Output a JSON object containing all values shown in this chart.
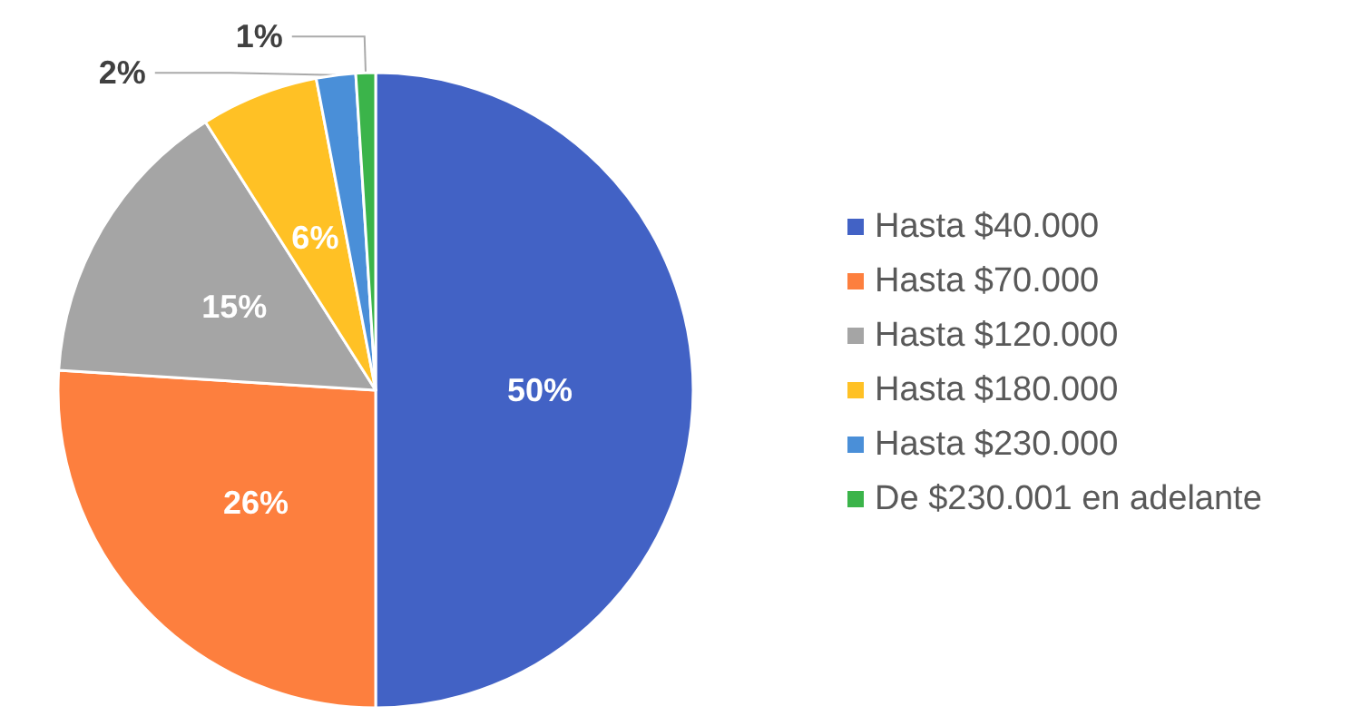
{
  "chart_data": {
    "type": "pie",
    "categories": [
      "Hasta $40.000",
      "Hasta $70.000",
      "Hasta $120.000",
      "Hasta $180.000",
      "Hasta $230.000",
      "De $230.001 en adelante"
    ],
    "values": [
      50,
      26,
      15,
      6,
      2,
      1
    ],
    "colors": [
      "#4262c5",
      "#fd7f3e",
      "#a5a5a5",
      "#ffc125",
      "#4a8fd8",
      "#3bb44a"
    ],
    "value_labels": [
      "50%",
      "26%",
      "15%",
      "6%",
      "2%",
      "1%"
    ],
    "legend": "right"
  }
}
